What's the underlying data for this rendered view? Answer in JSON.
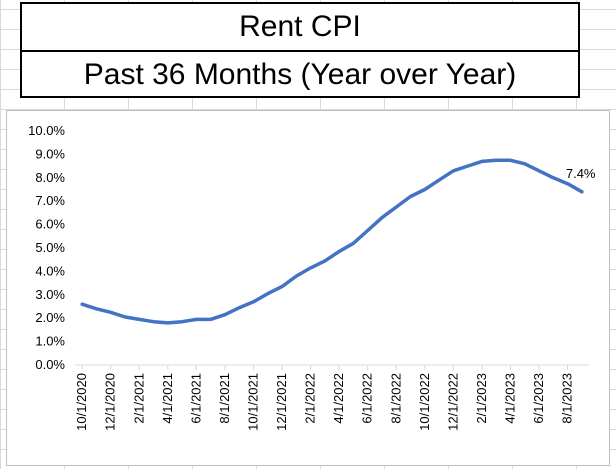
{
  "title": "Rent CPI",
  "subtitle": "Past 36 Months (Year over Year)",
  "chart_data": {
    "type": "line",
    "title": "Rent CPI",
    "subtitle": "Past 36 Months (Year over Year)",
    "xlabel": "",
    "ylabel": "",
    "ylim": [
      0,
      10
    ],
    "yticks": [
      "0.0%",
      "1.0%",
      "2.0%",
      "3.0%",
      "4.0%",
      "5.0%",
      "6.0%",
      "7.0%",
      "8.0%",
      "9.0%",
      "10.0%"
    ],
    "x": [
      "10/1/2020",
      "11/1/2020",
      "12/1/2020",
      "1/1/2021",
      "2/1/2021",
      "3/1/2021",
      "4/1/2021",
      "5/1/2021",
      "6/1/2021",
      "7/1/2021",
      "8/1/2021",
      "9/1/2021",
      "10/1/2021",
      "11/1/2021",
      "12/1/2021",
      "1/1/2022",
      "2/1/2022",
      "3/1/2022",
      "4/1/2022",
      "5/1/2022",
      "6/1/2022",
      "7/1/2022",
      "8/1/2022",
      "9/1/2022",
      "10/1/2022",
      "11/1/2022",
      "12/1/2022",
      "1/1/2023",
      "2/1/2023",
      "3/1/2023",
      "4/1/2023",
      "5/1/2023",
      "6/1/2023",
      "7/1/2023",
      "8/1/2023",
      "9/1/2023"
    ],
    "xtick_labels": [
      "10/1/2020",
      "12/1/2020",
      "2/1/2021",
      "4/1/2021",
      "6/1/2021",
      "8/1/2021",
      "10/1/2021",
      "12/1/2021",
      "2/1/2022",
      "4/1/2022",
      "6/1/2022",
      "8/1/2022",
      "10/1/2022",
      "12/1/2022",
      "2/1/2023",
      "4/1/2023",
      "6/1/2023",
      "8/1/2023"
    ],
    "series": [
      {
        "values": [
          2.6,
          2.4,
          2.25,
          2.05,
          1.95,
          1.85,
          1.8,
          1.85,
          1.95,
          1.95,
          2.15,
          2.45,
          2.7,
          3.05,
          3.35,
          3.8,
          4.15,
          4.45,
          4.85,
          5.2,
          5.75,
          6.3,
          6.75,
          7.2,
          7.5,
          7.9,
          8.3,
          8.5,
          8.7,
          8.75,
          8.75,
          8.6,
          8.3,
          8.0,
          7.75,
          7.4
        ],
        "color": "#4472c4"
      }
    ],
    "data_labels": [
      {
        "index": 35,
        "text": "7.4%"
      }
    ],
    "grid": false,
    "legend": "none"
  }
}
